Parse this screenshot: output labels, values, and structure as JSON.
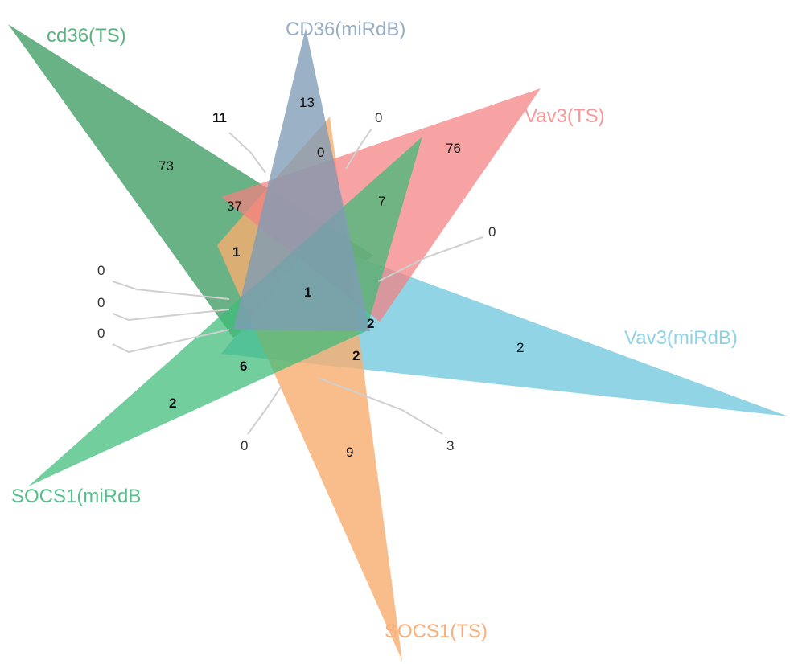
{
  "sets": [
    {
      "label": "cd36(TS)",
      "color": "#2f9456"
    },
    {
      "label": "CD36(miRdB)",
      "color": "#7f9bb6"
    },
    {
      "label": "Vav3(TS)",
      "color": "#f47f7f"
    },
    {
      "label": "Vav3(miRdB)",
      "color": "#7ecde0"
    },
    {
      "label": "SOCS1(TS)",
      "color": "#f7ad6f"
    },
    {
      "label": "SOCS1(miRdB",
      "color": "#3dbb78"
    }
  ],
  "counts": [
    "73",
    "13",
    "76",
    "2",
    "9",
    "2",
    "11",
    "0",
    "0",
    "37",
    "7",
    "1",
    "1",
    "2",
    "2",
    "6",
    "0",
    "0",
    "0",
    "0",
    "0",
    "3"
  ]
}
